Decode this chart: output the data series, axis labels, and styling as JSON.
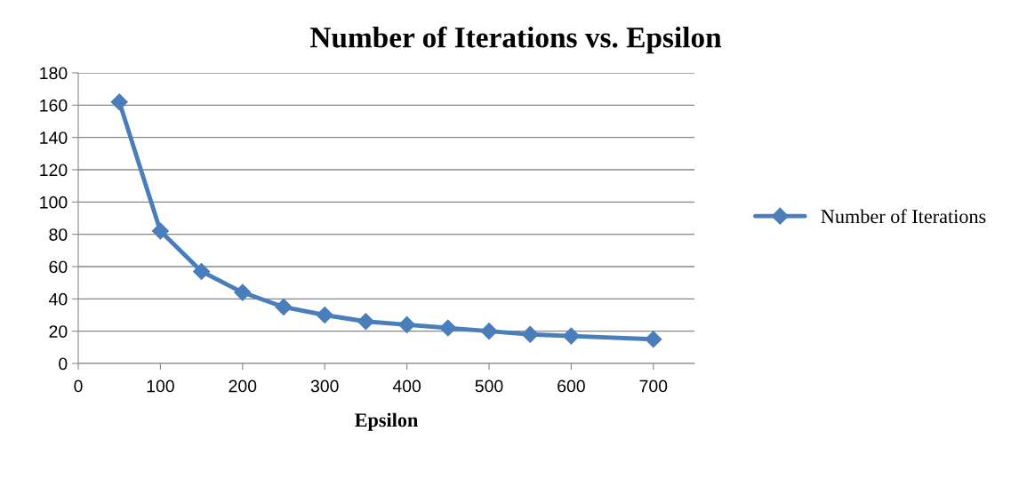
{
  "chart_data": {
    "type": "line",
    "title": "Number of Iterations vs. Epsilon",
    "xlabel": "Epsilon",
    "x": [
      50,
      100,
      150,
      200,
      250,
      300,
      350,
      400,
      450,
      500,
      550,
      600,
      700
    ],
    "series": [
      {
        "name": "Number of Iterations",
        "color": "#4a7ebb",
        "values": [
          162,
          82,
          57,
          44,
          35,
          30,
          26,
          24,
          22,
          20,
          18,
          17,
          15
        ]
      }
    ],
    "xlim": [
      0,
      750
    ],
    "xticks": [
      0,
      100,
      200,
      300,
      400,
      500,
      600,
      700
    ],
    "ylim": [
      0,
      180
    ],
    "yticks": [
      0,
      20,
      40,
      60,
      80,
      100,
      120,
      140,
      160,
      180
    ],
    "grid": "y",
    "legend": "right",
    "marker": "diamond",
    "line_style": "solid"
  }
}
